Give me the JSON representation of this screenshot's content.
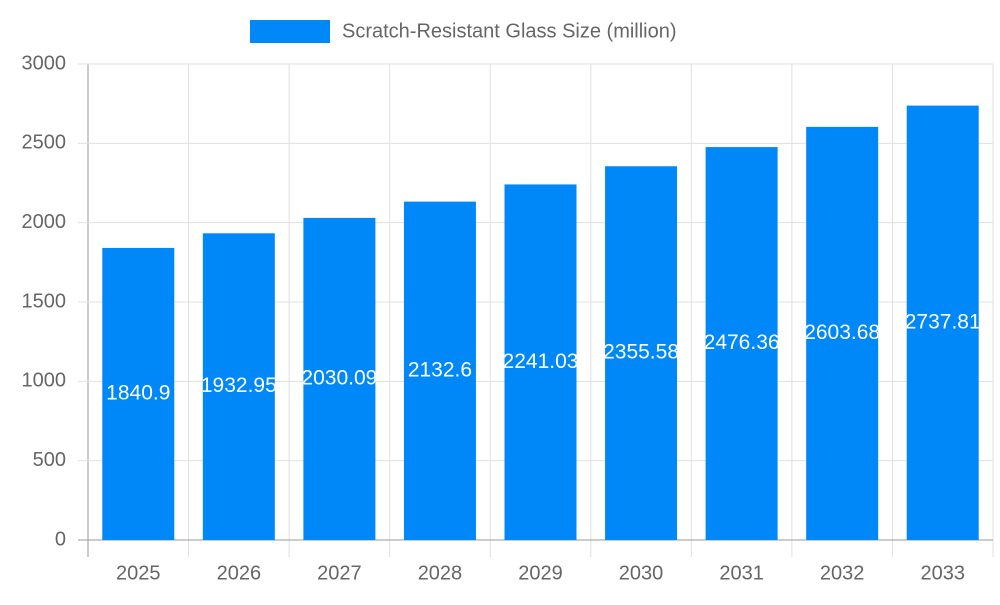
{
  "chart_data": {
    "type": "bar",
    "series": [
      {
        "name": "Scratch-Resistant Glass Size (million)",
        "color": "#0088f8",
        "values": [
          1840.9,
          1932.95,
          2030.09,
          2132.6,
          2241.03,
          2355.58,
          2476.36,
          2603.68,
          2737.81
        ]
      }
    ],
    "categories": [
      "2025",
      "2026",
      "2027",
      "2028",
      "2029",
      "2030",
      "2031",
      "2032",
      "2033"
    ],
    "ylim": [
      0,
      3000
    ],
    "yticks": [
      0,
      500,
      1000,
      1500,
      2000,
      2500,
      3000
    ],
    "grid": true,
    "legend": "top"
  }
}
